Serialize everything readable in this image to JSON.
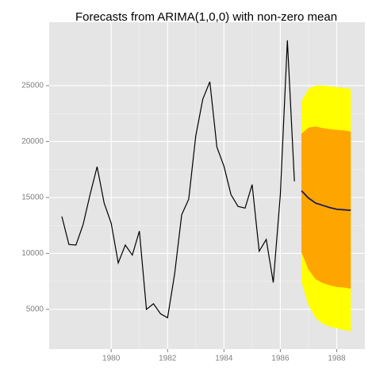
{
  "chart_data": {
    "type": "forecast",
    "title": "Forecasts from  ARIMA(1,0,0) with non-zero mean",
    "x": [
      1978.25,
      1978.5,
      1978.75,
      1979,
      1979.25,
      1979.5,
      1979.75,
      1980,
      1980.25,
      1980.5,
      1980.75,
      1981,
      1981.25,
      1981.5,
      1981.75,
      1982,
      1982.25,
      1982.5,
      1982.75,
      1983,
      1983.25,
      1983.5,
      1983.75,
      1984,
      1984.25,
      1984.5,
      1984.75,
      1985,
      1985.25,
      1985.5,
      1985.75,
      1986,
      1986.25,
      1986.5
    ],
    "values": [
      13300,
      10800,
      10750,
      12550,
      15250,
      17750,
      14500,
      12700,
      9150,
      10750,
      9850,
      12000,
      5000,
      5500,
      4600,
      4250,
      8150,
      13450,
      14850,
      20500,
      23800,
      25350,
      19500,
      17800,
      15250,
      14200,
      14050,
      16150,
      10200,
      11250,
      7400,
      15250,
      29050,
      16450
    ],
    "color": "#000000",
    "forecast": {
      "x": [
        1986.75,
        1987,
        1987.25,
        1987.5,
        1987.75,
        1988,
        1988.25,
        1988.5
      ],
      "mean": [
        15600,
        14950,
        14500,
        14300,
        14100,
        13950,
        13900,
        13850
      ],
      "lo80": [
        10100,
        8550,
        7700,
        7350,
        7150,
        7000,
        6950,
        6850
      ],
      "hi80": [
        20700,
        21250,
        21350,
        21200,
        21100,
        21050,
        21000,
        20900
      ],
      "lo95": [
        7450,
        5350,
        4250,
        3700,
        3450,
        3300,
        3150,
        3050
      ],
      "hi95": [
        23600,
        24700,
        25000,
        25000,
        24950,
        24850,
        24800,
        24700
      ],
      "color": "#1c1c5a",
      "color80": "#ffa500",
      "color95": "#ffff00"
    },
    "xlim": [
      1977.8,
      1989.0
    ],
    "ylim": [
      1450,
      30670
    ],
    "xticks": [
      1980,
      1982,
      1984,
      1986,
      1988
    ],
    "yticks": [
      5000,
      10000,
      15000,
      20000,
      25000
    ],
    "grid": true
  }
}
